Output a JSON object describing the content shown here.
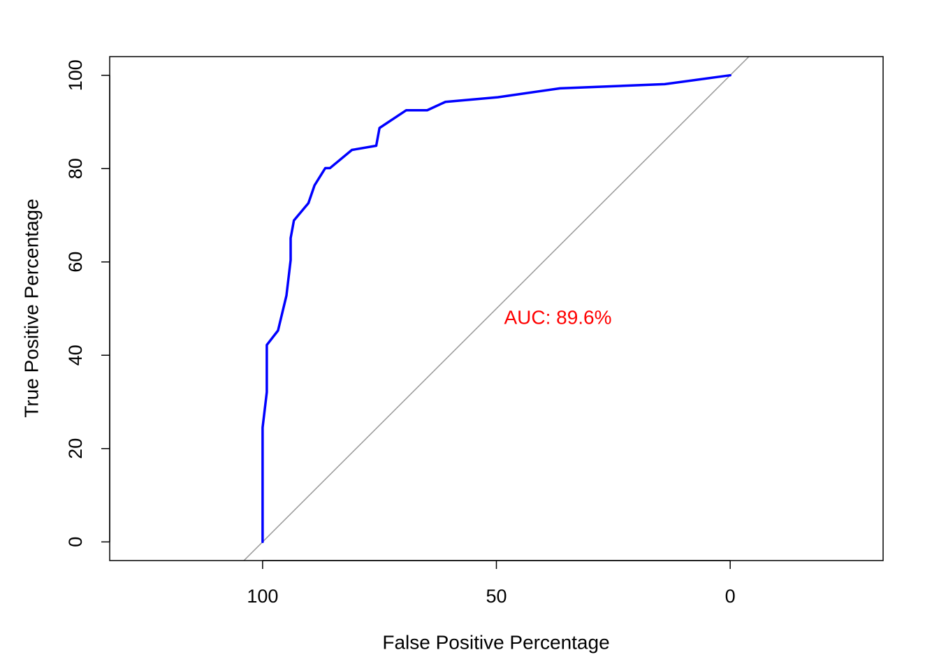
{
  "chart_data": {
    "type": "line",
    "title": "",
    "xlabel": "False Positive Percentage",
    "ylabel": "True Positive Percentage",
    "x_axis": {
      "reversed": true,
      "ticks": [
        100,
        50,
        0
      ],
      "tick_labels": [
        "100",
        "50",
        "0"
      ]
    },
    "y_axis": {
      "ticks": [
        0,
        20,
        40,
        60,
        80,
        100
      ],
      "tick_labels": [
        "0",
        "20",
        "40",
        "60",
        "80",
        "100"
      ]
    },
    "xlim": [
      132.7,
      -32.7
    ],
    "ylim": [
      -4,
      104
    ],
    "grid": false,
    "legend": "none",
    "series": [
      {
        "color": "#0000ff",
        "x": [
          100,
          100,
          99.1,
          99.1,
          96.7,
          94.9,
          94.0,
          94.0,
          93.3,
          90.2,
          88.9,
          86.6,
          85.6,
          80.9,
          75.7,
          75.0,
          69.3,
          64.8,
          60.9,
          49.7,
          36.4,
          14.0,
          0
        ],
        "y": [
          0,
          24.5,
          32.1,
          42.2,
          45.3,
          52.8,
          60.4,
          65.1,
          68.9,
          72.6,
          76.4,
          80.1,
          80.1,
          84.0,
          84.9,
          88.7,
          92.5,
          92.5,
          94.3,
          95.3,
          97.2,
          98.1,
          100
        ]
      },
      {
        "color": "#999999",
        "reference_line": "diagonal",
        "x": [
          0,
          100
        ],
        "y": [
          100,
          0
        ]
      }
    ],
    "annotation": {
      "text": "AUC: 89.6%",
      "x": 50,
      "y": 48,
      "color": "#ff0000"
    }
  }
}
